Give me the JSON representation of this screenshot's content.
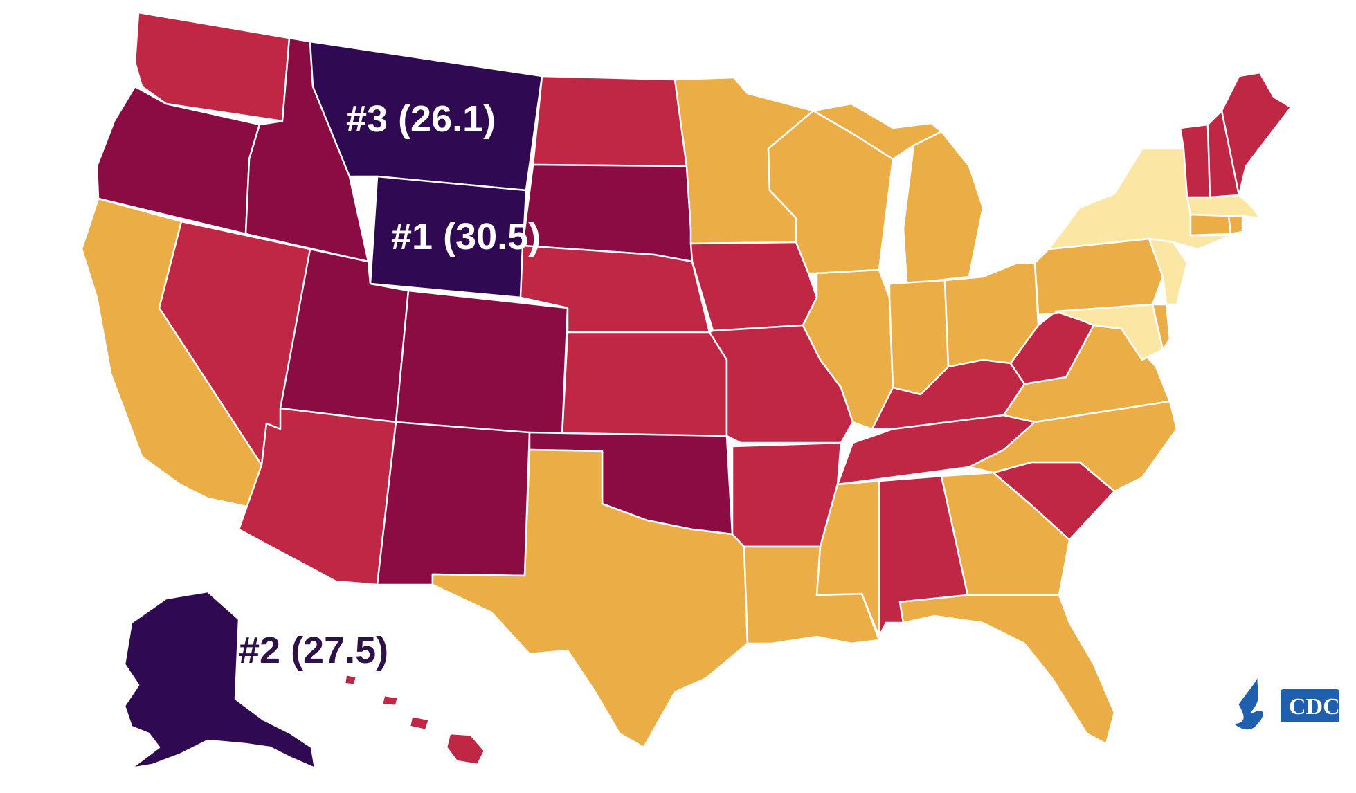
{
  "colors": {
    "tier_top": "#2f0952",
    "tier_high": "#8a0c42",
    "tier_mid": "#bf2745",
    "tier_low": "#ebae47",
    "tier_lowest": "#fbe7a3",
    "border": "#ffffff",
    "label_dark": "#2d1148",
    "label_light": "#ffffff",
    "cdc_blue": "#1f5fae"
  },
  "labels": {
    "wyoming": "#1 (30.5)",
    "alaska": "#2 (27.5)",
    "montana": "#3 (26.1)"
  },
  "logo": {
    "text": "CDC",
    "icon": "hhs-eagle-icon"
  }
}
